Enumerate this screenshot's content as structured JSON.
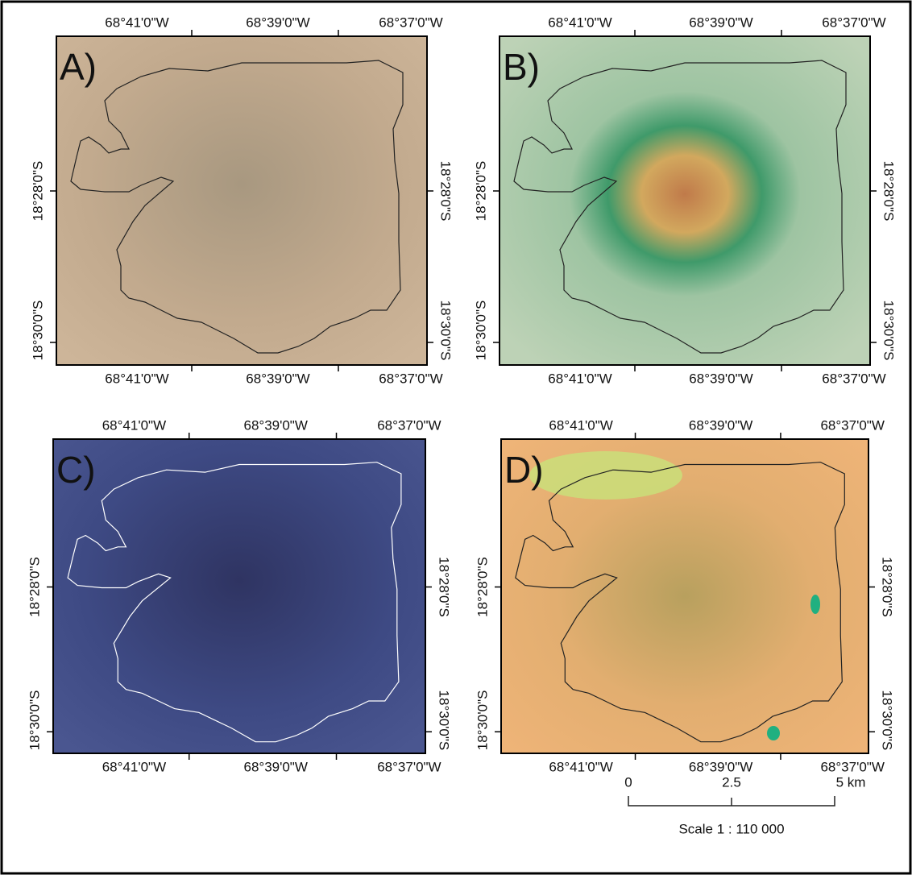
{
  "panels": [
    {
      "label": "A)",
      "top_ticks": [
        "68°41'0\"W",
        "68°39'0\"W",
        "68°37'0\"W"
      ],
      "bottom_ticks": [
        "68°41'0\"W",
        "68°39'0\"W",
        "68°37'0\"W"
      ],
      "left_ticks": [
        "18°28'0\"S",
        "18°30'0\"S"
      ],
      "right_ticks": [
        "18°28'0\"S",
        "18°30'0\"S"
      ]
    },
    {
      "label": "B)",
      "top_ticks": [
        "68°41'0\"W",
        "68°39'0\"W",
        "68°37'0\"W"
      ],
      "bottom_ticks": [
        "68°41'0\"W",
        "68°39'0\"W",
        "68°37'0\"W"
      ],
      "left_ticks": [
        "18°28'0\"S",
        "18°30'0\"S"
      ],
      "right_ticks": [
        "18°28'0\"S",
        "18°30'0\"S"
      ]
    },
    {
      "label": "C)",
      "top_ticks": [
        "68°41'0\"W",
        "68°39'0\"W",
        "68°37'0\"W"
      ],
      "bottom_ticks": [
        "68°41'0\"W",
        "68°39'0\"W",
        "68°37'0\"W"
      ],
      "left_ticks": [
        "18°28'0\"S",
        "18°30'0\"S"
      ],
      "right_ticks": [
        "18°28'0\"S",
        "18°30'0\"S"
      ]
    },
    {
      "label": "D)",
      "top_ticks": [
        "68°41'0\"W",
        "68°39'0\"W",
        "68°37'0\"W"
      ],
      "bottom_ticks": [
        "68°41'0\"W",
        "68°39'0\"W",
        "68°37'0\"W"
      ],
      "left_ticks": [
        "18°28'0\"S",
        "18°30'0\"S"
      ],
      "right_ticks": [
        "18°28'0\"S",
        "18°30'0\"S"
      ]
    }
  ],
  "scale_bar": {
    "ticks": [
      "0",
      "2.5",
      "5 km"
    ],
    "caption": "Scale 1 : 110 000"
  }
}
